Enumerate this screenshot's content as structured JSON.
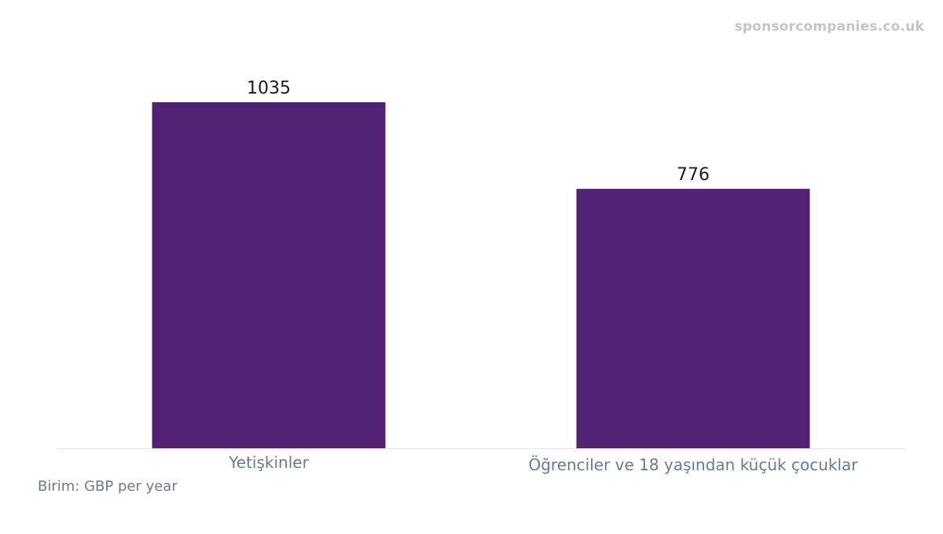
{
  "watermark": "sponsorcompanies.co.uk",
  "unit_note": "Birim: GBP per year",
  "colors": {
    "bar": "#522174",
    "value_label": "#1a1a2e",
    "category_label": "#6b7a90",
    "baseline": "#e6e6e6",
    "watermark": "#c4c4c4"
  },
  "chart_data": {
    "type": "bar",
    "title": "",
    "xlabel": "",
    "ylabel": "",
    "categories": [
      "Yetişkinler",
      "Öğrenciler ve 18 yaşından küçük çocuklar"
    ],
    "values": [
      1035,
      776
    ],
    "ylim": [
      0,
      1035
    ],
    "grid": false,
    "legend": "none"
  }
}
